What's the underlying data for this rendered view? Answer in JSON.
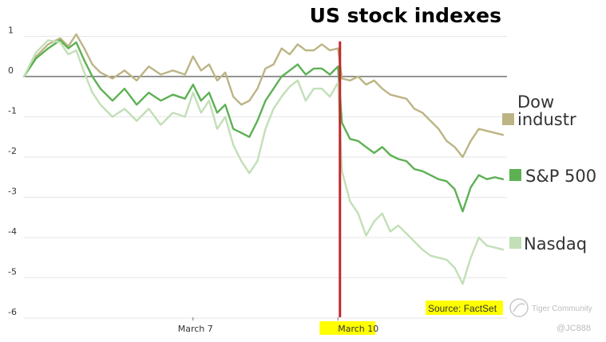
{
  "chart_data": {
    "type": "line",
    "title": "US stock indexes",
    "xlabel": "",
    "ylabel": "",
    "ylim": [
      -6,
      1.2
    ],
    "yticks": [
      1,
      0,
      -1,
      -2,
      -3,
      -4,
      -5,
      -6
    ],
    "ytick_labels": [
      "1",
      "0",
      "-1",
      "-2",
      "-3",
      "-4",
      "-5",
      "-6"
    ],
    "x_range": [
      0,
      120
    ],
    "x_ticks": [
      {
        "label": "March 7",
        "x": 42,
        "highlight": false
      },
      {
        "label": "March 10",
        "x": 78,
        "highlight": true
      }
    ],
    "marker": {
      "label": "March 10",
      "x": 78.5,
      "color": "#c0282d"
    },
    "grid": true,
    "legend_placement": "right",
    "series": [
      {
        "name": "Dow industr",
        "legend_lines": [
          "Dow",
          "industr"
        ],
        "color": "#bcb484",
        "points": [
          [
            0,
            0
          ],
          [
            3,
            0.5
          ],
          [
            6,
            0.8
          ],
          [
            9,
            0.95
          ],
          [
            11,
            0.75
          ],
          [
            13,
            1.05
          ],
          [
            15,
            0.7
          ],
          [
            17,
            0.3
          ],
          [
            19,
            0.1
          ],
          [
            22,
            -0.05
          ],
          [
            25,
            0.15
          ],
          [
            28,
            -0.1
          ],
          [
            31,
            0.25
          ],
          [
            34,
            0.05
          ],
          [
            37,
            0.15
          ],
          [
            40,
            0.05
          ],
          [
            42,
            0.5
          ],
          [
            44,
            0.15
          ],
          [
            46,
            0.3
          ],
          [
            48,
            -0.1
          ],
          [
            50,
            0.1
          ],
          [
            52,
            -0.5
          ],
          [
            54,
            -0.7
          ],
          [
            56,
            -0.6
          ],
          [
            58,
            -0.3
          ],
          [
            60,
            0.2
          ],
          [
            62,
            0.3
          ],
          [
            64,
            0.7
          ],
          [
            66,
            0.55
          ],
          [
            68,
            0.8
          ],
          [
            70,
            0.65
          ],
          [
            72,
            0.65
          ],
          [
            74,
            0.8
          ],
          [
            76,
            0.65
          ],
          [
            78,
            0.7
          ],
          [
            79,
            -0.05
          ],
          [
            81,
            -0.1
          ],
          [
            83,
            0
          ],
          [
            85,
            -0.2
          ],
          [
            87,
            -0.1
          ],
          [
            89,
            -0.3
          ],
          [
            91,
            -0.45
          ],
          [
            93,
            -0.5
          ],
          [
            95,
            -0.55
          ],
          [
            97,
            -0.8
          ],
          [
            99,
            -0.9
          ],
          [
            101,
            -1.1
          ],
          [
            103,
            -1.3
          ],
          [
            105,
            -1.6
          ],
          [
            107,
            -1.75
          ],
          [
            109,
            -2.0
          ],
          [
            111,
            -1.6
          ],
          [
            113,
            -1.3
          ],
          [
            115,
            -1.35
          ],
          [
            117,
            -1.4
          ],
          [
            119,
            -1.45
          ]
        ]
      },
      {
        "name": "S&P 500",
        "legend_lines": [
          "S&P 500"
        ],
        "color": "#5db153",
        "points": [
          [
            0,
            0
          ],
          [
            3,
            0.45
          ],
          [
            6,
            0.7
          ],
          [
            9,
            0.9
          ],
          [
            11,
            0.7
          ],
          [
            13,
            0.85
          ],
          [
            15,
            0.4
          ],
          [
            17,
            0
          ],
          [
            19,
            -0.3
          ],
          [
            22,
            -0.6
          ],
          [
            25,
            -0.3
          ],
          [
            28,
            -0.7
          ],
          [
            31,
            -0.4
          ],
          [
            34,
            -0.6
          ],
          [
            37,
            -0.45
          ],
          [
            40,
            -0.55
          ],
          [
            42,
            -0.2
          ],
          [
            44,
            -0.6
          ],
          [
            46,
            -0.4
          ],
          [
            48,
            -0.9
          ],
          [
            50,
            -0.7
          ],
          [
            52,
            -1.3
          ],
          [
            54,
            -1.4
          ],
          [
            56,
            -1.5
          ],
          [
            58,
            -1.1
          ],
          [
            60,
            -0.6
          ],
          [
            62,
            -0.3
          ],
          [
            64,
            0
          ],
          [
            66,
            0.15
          ],
          [
            68,
            0.3
          ],
          [
            70,
            0.05
          ],
          [
            72,
            0.2
          ],
          [
            74,
            0.2
          ],
          [
            76,
            0.05
          ],
          [
            78,
            0.25
          ],
          [
            79,
            -1.15
          ],
          [
            81,
            -1.55
          ],
          [
            83,
            -1.6
          ],
          [
            85,
            -1.75
          ],
          [
            87,
            -1.9
          ],
          [
            89,
            -1.75
          ],
          [
            91,
            -1.95
          ],
          [
            93,
            -2.05
          ],
          [
            95,
            -2.1
          ],
          [
            97,
            -2.3
          ],
          [
            99,
            -2.35
          ],
          [
            101,
            -2.45
          ],
          [
            103,
            -2.55
          ],
          [
            105,
            -2.6
          ],
          [
            107,
            -2.8
          ],
          [
            109,
            -3.35
          ],
          [
            111,
            -2.75
          ],
          [
            113,
            -2.45
          ],
          [
            115,
            -2.55
          ],
          [
            117,
            -2.5
          ],
          [
            119,
            -2.55
          ]
        ]
      },
      {
        "name": "Nasdaq",
        "legend_lines": [
          "Nasdaq"
        ],
        "color": "#c2dfb7",
        "points": [
          [
            0,
            0
          ],
          [
            3,
            0.6
          ],
          [
            6,
            0.9
          ],
          [
            9,
            0.85
          ],
          [
            11,
            0.55
          ],
          [
            13,
            0.65
          ],
          [
            15,
            0.1
          ],
          [
            17,
            -0.4
          ],
          [
            19,
            -0.7
          ],
          [
            22,
            -1.0
          ],
          [
            25,
            -0.8
          ],
          [
            28,
            -1.1
          ],
          [
            31,
            -0.8
          ],
          [
            34,
            -1.2
          ],
          [
            37,
            -0.9
          ],
          [
            40,
            -1.0
          ],
          [
            42,
            -0.4
          ],
          [
            44,
            -0.9
          ],
          [
            46,
            -0.6
          ],
          [
            48,
            -1.3
          ],
          [
            50,
            -1.0
          ],
          [
            52,
            -1.7
          ],
          [
            54,
            -2.1
          ],
          [
            56,
            -2.4
          ],
          [
            58,
            -2.1
          ],
          [
            60,
            -1.3
          ],
          [
            62,
            -0.8
          ],
          [
            64,
            -0.5
          ],
          [
            66,
            -0.25
          ],
          [
            68,
            -0.1
          ],
          [
            70,
            -0.6
          ],
          [
            72,
            -0.3
          ],
          [
            74,
            -0.3
          ],
          [
            76,
            -0.5
          ],
          [
            78,
            -0.15
          ],
          [
            79,
            -2.35
          ],
          [
            81,
            -3.1
          ],
          [
            83,
            -3.4
          ],
          [
            85,
            -3.95
          ],
          [
            87,
            -3.6
          ],
          [
            89,
            -3.4
          ],
          [
            91,
            -3.85
          ],
          [
            93,
            -3.7
          ],
          [
            95,
            -3.9
          ],
          [
            97,
            -4.1
          ],
          [
            99,
            -4.3
          ],
          [
            101,
            -4.45
          ],
          [
            103,
            -4.5
          ],
          [
            105,
            -4.55
          ],
          [
            107,
            -4.75
          ],
          [
            109,
            -5.15
          ],
          [
            111,
            -4.5
          ],
          [
            113,
            -4.0
          ],
          [
            115,
            -4.2
          ],
          [
            117,
            -4.25
          ],
          [
            119,
            -4.3
          ]
        ]
      }
    ],
    "source": "Source: FactSet"
  },
  "watermark": {
    "brand": "Tiger Community",
    "handle": "@JC888"
  },
  "colors": {
    "highlight": "#ffff00",
    "axis_line": "#555555",
    "grid": "#e6e6e6"
  }
}
